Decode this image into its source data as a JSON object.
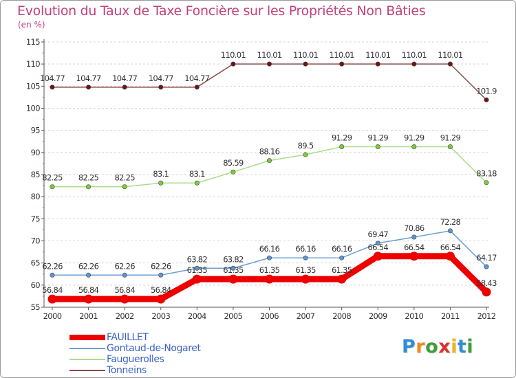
{
  "title": "Evolution du Taux de Taxe Foncière sur les Propriétés Non Bâties",
  "unit_label": "(en %)",
  "brand": {
    "letters": [
      "P",
      "r",
      "o",
      "x",
      "i",
      "t",
      "i"
    ],
    "colors": [
      "#2f8fd4",
      "#f08a1c",
      "#3f9e3a",
      "#d8342e",
      "#f2b21b",
      "#2f8fd4",
      "#3f9e3a"
    ]
  },
  "chart_data": {
    "type": "line",
    "title": "Evolution du Taux de Taxe Foncière sur les Propriétés Non Bâties",
    "ylabel": "(en %)",
    "xlabel": "",
    "x": [
      "2000",
      "2001",
      "2002",
      "2003",
      "2004",
      "2005",
      "2006",
      "2007",
      "2008",
      "2009",
      "2010",
      "2011",
      "2012"
    ],
    "ylim": [
      55,
      115
    ],
    "yticks": [
      55,
      60,
      65,
      70,
      75,
      80,
      85,
      90,
      95,
      100,
      105,
      110,
      115
    ],
    "grid": "horizontal-dashed",
    "legend_position": "bottom-left",
    "series": [
      {
        "name": "FAUILLET",
        "color": "#ee0000",
        "marker_color": "#ee0000",
        "emphasis": "thick",
        "values": [
          56.84,
          56.84,
          56.84,
          56.84,
          61.35,
          61.35,
          61.35,
          61.35,
          61.35,
          66.54,
          66.54,
          66.54,
          58.43
        ],
        "labels": [
          "56.84",
          "56.84",
          "56.84",
          "56.84",
          "61.35",
          "61.35",
          "61.35",
          "61.35",
          "61.35",
          "66.54",
          "66.54",
          "66.54",
          "58.43"
        ]
      },
      {
        "name": "Gontaud-de-Nogaret",
        "color": "#6a9fd0",
        "marker_color": "#5b95d5",
        "emphasis": "thin",
        "values": [
          62.26,
          62.26,
          62.26,
          62.26,
          63.82,
          63.82,
          66.16,
          66.16,
          66.16,
          69.47,
          70.86,
          72.28,
          64.17
        ],
        "labels": [
          "62.26",
          "62.26",
          "62.26",
          "62.26",
          "63.82",
          "63.82",
          "66.16",
          "66.16",
          "66.16",
          "69.47",
          "70.86",
          "72.28",
          "64.17"
        ]
      },
      {
        "name": "Fauguerolles",
        "color": "#a8dd8a",
        "marker_color": "#7ccc3a",
        "emphasis": "thin",
        "values": [
          82.25,
          82.25,
          82.25,
          83.1,
          83.1,
          85.59,
          88.16,
          89.5,
          91.29,
          91.29,
          91.29,
          91.29,
          83.18
        ],
        "labels": [
          "82.25",
          "82.25",
          "82.25",
          "83.1",
          "83.1",
          "85.59",
          "88.16",
          "89.5",
          "91.29",
          "91.29",
          "91.29",
          "91.29",
          "83.18"
        ]
      },
      {
        "name": "Tonneins",
        "color": "#8a4a4a",
        "marker_color": "#6e1414",
        "emphasis": "thin",
        "values": [
          104.77,
          104.77,
          104.77,
          104.77,
          104.77,
          110.01,
          110.01,
          110.01,
          110.01,
          110.01,
          110.01,
          110.01,
          101.9
        ],
        "labels": [
          "104.77",
          "104.77",
          "104.77",
          "104.77",
          "104.77",
          "110.01",
          "110.01",
          "110.01",
          "110.01",
          "110.01",
          "110.01",
          "110.01",
          "101.9"
        ]
      }
    ]
  }
}
